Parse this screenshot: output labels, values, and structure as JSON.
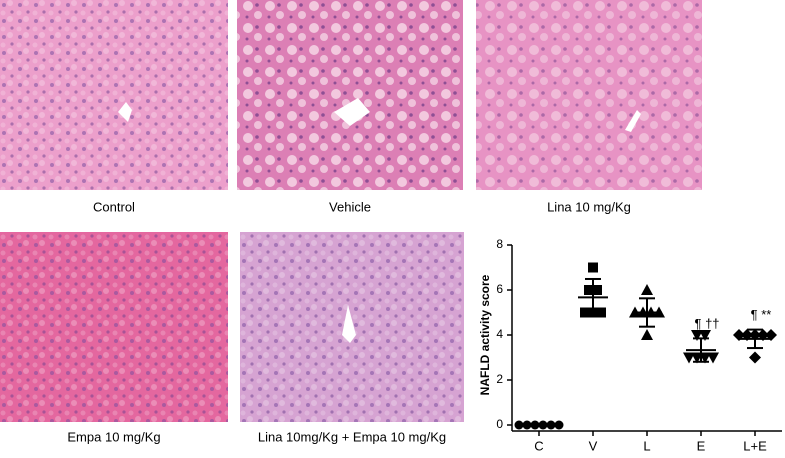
{
  "panels": [
    {
      "caption": "Control"
    },
    {
      "caption": "Vehicle"
    },
    {
      "caption": "Lina 10 mg/Kg"
    },
    {
      "caption": "Empa 10 mg/Kg"
    },
    {
      "caption": "Lina 10mg/Kg + Empa 10 mg/Kg"
    }
  ],
  "chart_data": {
    "type": "dot",
    "y_label": "NAFLD activity score",
    "categories": [
      "C",
      "V",
      "L",
      "E",
      "L+E"
    ],
    "values": [
      [
        0,
        0,
        0,
        0,
        0,
        0
      ],
      [
        7,
        6,
        6,
        5,
        5,
        5
      ],
      [
        6,
        5,
        5,
        5,
        5,
        4
      ],
      [
        4,
        4,
        3,
        3,
        3,
        3
      ],
      [
        4,
        4,
        4,
        4,
        4,
        3
      ]
    ],
    "means": [
      0,
      5.67,
      5,
      3.33,
      3.83
    ],
    "sd": [
      0,
      0.82,
      0.63,
      0.52,
      0.41
    ],
    "significance": [
      null,
      null,
      null,
      "¶ ††",
      "¶ **"
    ],
    "markers": [
      "circle",
      "square",
      "triangle",
      "triangle-down",
      "diamond"
    ],
    "color": "#000000",
    "ylim": [
      0,
      8
    ],
    "yticks": [
      0,
      2,
      4,
      6,
      8
    ]
  }
}
